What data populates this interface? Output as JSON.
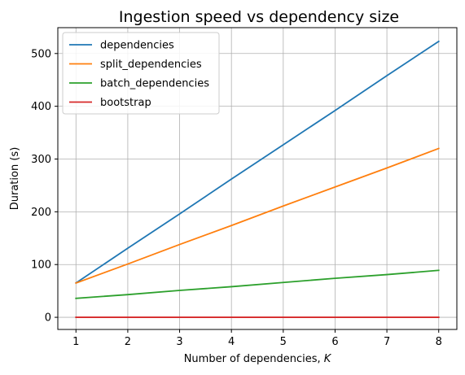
{
  "chart_data": {
    "type": "line",
    "title": "Ingestion speed vs dependency size",
    "xlabel": "Number of dependencies, ",
    "xlabel_var": "K",
    "ylabel": "Duration (s)",
    "x": [
      1,
      2,
      3,
      4,
      5,
      6,
      7,
      8
    ],
    "xlim": [
      0.65,
      8.35
    ],
    "ylim": [
      -23,
      549
    ],
    "xticks": [
      1,
      2,
      3,
      4,
      5,
      6,
      7,
      8
    ],
    "yticks": [
      0,
      100,
      200,
      300,
      400,
      500
    ],
    "grid": true,
    "legend_position": "upper-left",
    "series": [
      {
        "name": "dependencies",
        "color": "#1f77b4",
        "values": [
          65,
          131,
          196,
          262,
          327,
          392,
          458,
          523
        ]
      },
      {
        "name": "split_dependencies",
        "color": "#ff7f0e",
        "values": [
          65,
          101,
          138,
          174,
          211,
          247,
          283,
          320
        ]
      },
      {
        "name": "batch_dependencies",
        "color": "#2ca02c",
        "values": [
          36,
          43,
          51,
          58,
          66,
          74,
          81,
          89
        ]
      },
      {
        "name": "bootstrap",
        "color": "#d62728",
        "values": [
          0,
          0,
          0,
          0,
          0,
          0,
          0,
          0
        ]
      }
    ]
  }
}
